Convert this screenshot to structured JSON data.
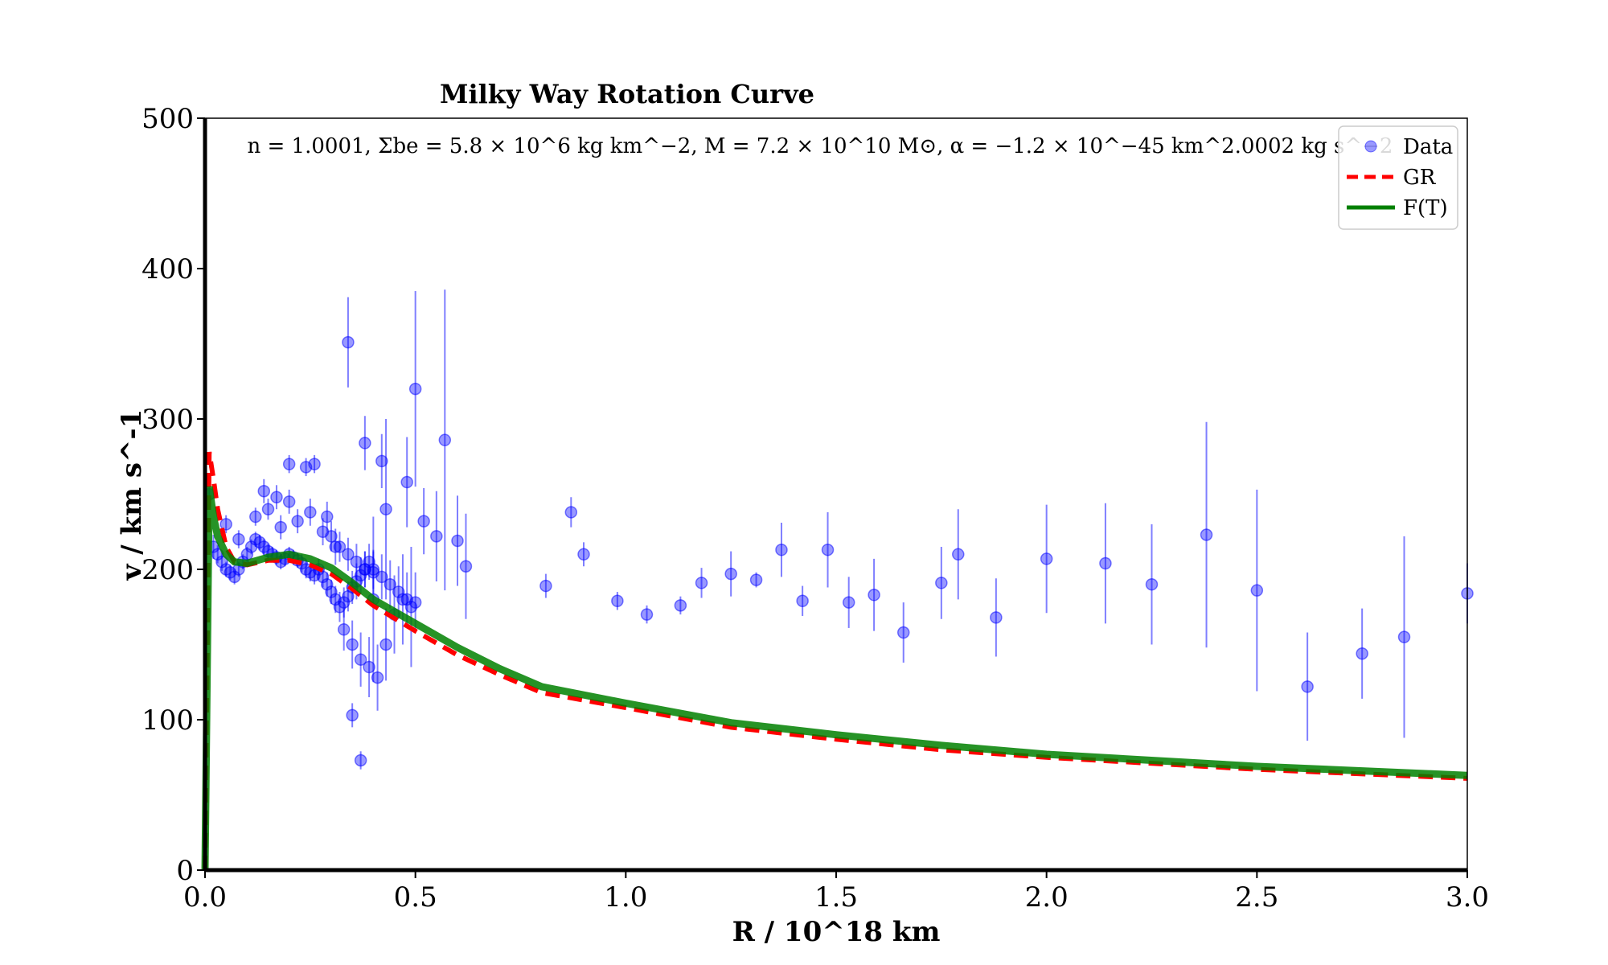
{
  "chart_data": {
    "type": "scatter",
    "title": "Milky Way Rotation Curve",
    "xlabel": "R / 10^18 km",
    "ylabel": "v / km s^-1",
    "xlim": [
      0,
      3.0
    ],
    "ylim": [
      0,
      500
    ],
    "xticks": [
      "0.0",
      "0.5",
      "1.0",
      "1.5",
      "2.0",
      "2.5",
      "3.0"
    ],
    "yticks": [
      "0",
      "100",
      "200",
      "300",
      "400",
      "500"
    ],
    "grid": false,
    "legend_position": "top-right",
    "annotation": "n = 1.0001, Σbe = 5.8 × 10^6 kg km^−2, M = 7.2 × 10^10 M⊙, α = −1.2 × 10^−45 km^2.0002 kg s^−2",
    "colors": {
      "data": "#0000ff",
      "gr": "#ff0000",
      "ft": "#008000"
    },
    "series": [
      {
        "name": "Data",
        "kind": "errorbar-scatter",
        "x": [
          0.01,
          0.02,
          0.03,
          0.04,
          0.05,
          0.06,
          0.07,
          0.08,
          0.09,
          0.1,
          0.11,
          0.12,
          0.13,
          0.14,
          0.15,
          0.16,
          0.17,
          0.18,
          0.19,
          0.2,
          0.21,
          0.22,
          0.23,
          0.24,
          0.25,
          0.26,
          0.27,
          0.28,
          0.29,
          0.3,
          0.31,
          0.32,
          0.33,
          0.34,
          0.35,
          0.36,
          0.37,
          0.38,
          0.39,
          0.4,
          0.05,
          0.08,
          0.12,
          0.15,
          0.18,
          0.2,
          0.22,
          0.25,
          0.28,
          0.3,
          0.32,
          0.34,
          0.36,
          0.38,
          0.4,
          0.42,
          0.44,
          0.46,
          0.48,
          0.5,
          0.14,
          0.17,
          0.2,
          0.24,
          0.26,
          0.29,
          0.31,
          0.33,
          0.35,
          0.37,
          0.39,
          0.41,
          0.43,
          0.45,
          0.47,
          0.49,
          0.34,
          0.38,
          0.42,
          0.48,
          0.52,
          0.55,
          0.6,
          0.62,
          0.57,
          0.5,
          0.43,
          0.4,
          0.37,
          0.35,
          0.81,
          0.87,
          0.9,
          0.98,
          1.05,
          1.13,
          1.18,
          1.25,
          1.31,
          1.37,
          1.42,
          1.48,
          1.53,
          1.59,
          1.66,
          1.75,
          1.79,
          1.88,
          2.0,
          2.14,
          2.25,
          2.38,
          2.5,
          2.62,
          2.75,
          2.85,
          3.0
        ],
        "y": [
          250,
          215,
          210,
          205,
          200,
          198,
          195,
          200,
          205,
          210,
          215,
          220,
          218,
          215,
          212,
          210,
          208,
          205,
          207,
          210,
          208,
          206,
          204,
          200,
          198,
          196,
          200,
          195,
          190,
          185,
          180,
          175,
          178,
          182,
          188,
          192,
          196,
          200,
          205,
          200,
          230,
          220,
          235,
          240,
          228,
          245,
          232,
          238,
          225,
          222,
          215,
          210,
          205,
          200,
          198,
          195,
          190,
          185,
          180,
          178,
          252,
          248,
          270,
          268,
          270,
          235,
          215,
          160,
          150,
          140,
          135,
          128,
          150,
          170,
          180,
          175,
          351,
          284,
          272,
          258,
          232,
          222,
          219,
          202,
          286,
          320,
          240,
          180,
          73,
          103,
          189,
          238,
          210,
          179,
          170,
          176,
          191,
          197,
          193,
          213,
          179,
          213,
          178,
          183,
          158,
          191,
          210,
          168,
          207,
          204,
          190,
          223,
          186,
          122,
          144,
          155,
          184
        ],
        "yerr": [
          10,
          8,
          6,
          6,
          5,
          5,
          5,
          5,
          5,
          5,
          5,
          5,
          5,
          5,
          5,
          5,
          5,
          5,
          5,
          5,
          5,
          5,
          6,
          6,
          6,
          6,
          7,
          7,
          8,
          8,
          9,
          10,
          10,
          10,
          11,
          12,
          12,
          12,
          12,
          13,
          6,
          6,
          6,
          7,
          8,
          8,
          8,
          9,
          9,
          10,
          10,
          11,
          12,
          12,
          14,
          15,
          16,
          17,
          18,
          20,
          8,
          8,
          6,
          6,
          6,
          10,
          12,
          14,
          16,
          18,
          20,
          22,
          24,
          26,
          30,
          40,
          30,
          18,
          18,
          30,
          22,
          30,
          30,
          35,
          100,
          65,
          60,
          55,
          6,
          8,
          8,
          10,
          8,
          6,
          6,
          6,
          10,
          15,
          5,
          18,
          10,
          25,
          17,
          24,
          20,
          24,
          30,
          26,
          36,
          40,
          40,
          75,
          67,
          36,
          30,
          67,
          20
        ]
      },
      {
        "name": "GR",
        "kind": "line",
        "style": "dashed",
        "x": [
          0.0,
          0.01,
          0.02,
          0.03,
          0.05,
          0.07,
          0.1,
          0.15,
          0.2,
          0.25,
          0.3,
          0.35,
          0.4,
          0.5,
          0.6,
          0.7,
          0.8,
          1.0,
          1.25,
          1.5,
          1.75,
          2.0,
          2.5,
          3.0
        ],
        "y": [
          0,
          278,
          260,
          240,
          215,
          205,
          203,
          206,
          206,
          203,
          197,
          187,
          176,
          159,
          143,
          130,
          118,
          108,
          95,
          87,
          80,
          75,
          67,
          61
        ]
      },
      {
        "name": "F(T)",
        "kind": "line",
        "style": "solid",
        "x": [
          0.0,
          0.01,
          0.02,
          0.03,
          0.05,
          0.07,
          0.1,
          0.15,
          0.2,
          0.25,
          0.3,
          0.35,
          0.4,
          0.5,
          0.6,
          0.7,
          0.8,
          1.0,
          1.25,
          1.5,
          1.75,
          2.0,
          2.5,
          3.0
        ],
        "y": [
          0,
          255,
          235,
          222,
          210,
          205,
          204,
          208,
          210,
          207,
          201,
          191,
          180,
          164,
          148,
          134,
          122,
          111,
          98,
          90,
          83,
          77,
          69,
          63
        ]
      }
    ]
  }
}
